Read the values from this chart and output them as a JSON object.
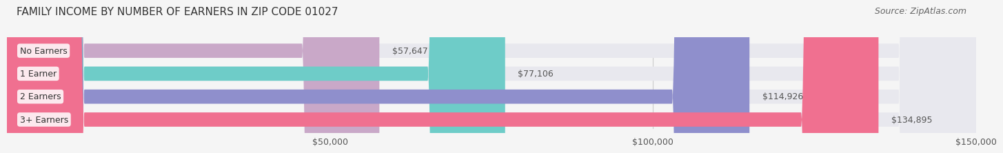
{
  "title": "FAMILY INCOME BY NUMBER OF EARNERS IN ZIP CODE 01027",
  "source": "Source: ZipAtlas.com",
  "categories": [
    "No Earners",
    "1 Earner",
    "2 Earners",
    "3+ Earners"
  ],
  "values": [
    57647,
    77106,
    114926,
    134895
  ],
  "bar_colors": [
    "#c9a8c8",
    "#6eccc8",
    "#8f8fcc",
    "#f07090"
  ],
  "bar_bg_color": "#e8e8ee",
  "value_labels": [
    "$57,647",
    "$77,106",
    "$114,926",
    "$134,895"
  ],
  "xlim": [
    0,
    150000
  ],
  "xticks": [
    50000,
    100000,
    150000
  ],
  "xticklabels": [
    "$50,000",
    "$100,000",
    "$150,000"
  ],
  "title_fontsize": 11,
  "source_fontsize": 9,
  "label_fontsize": 9,
  "tick_fontsize": 9,
  "title_color": "#333333",
  "source_color": "#666666",
  "label_color": "#333333",
  "bg_color": "#f5f5f5"
}
